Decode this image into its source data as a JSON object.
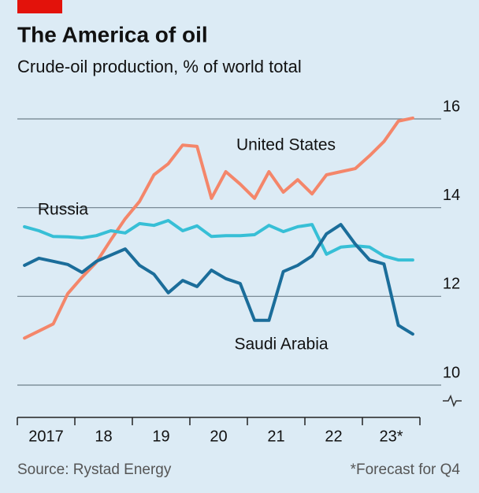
{
  "chart_data": {
    "type": "line",
    "title": "The America of oil",
    "subtitle": "Crude-oil production, % of world total",
    "source": "Source: Rystad Energy",
    "note": "*Forecast for Q4",
    "x": [
      2017.125,
      2017.375,
      2017.625,
      2017.875,
      2018.125,
      2018.375,
      2018.625,
      2018.875,
      2019.125,
      2019.375,
      2019.625,
      2019.875,
      2020.125,
      2020.375,
      2020.625,
      2020.875,
      2021.125,
      2021.375,
      2021.625,
      2021.875,
      2022.125,
      2022.375,
      2022.625,
      2022.875,
      2023.125,
      2023.375,
      2023.625,
      2023.875
    ],
    "xlim": [
      2017,
      2024
    ],
    "xticks": [
      2017,
      2018,
      2019,
      2020,
      2021,
      2022,
      2023,
      2024
    ],
    "xtick_labels": [
      {
        "value": 2017.5,
        "label": "2017"
      },
      {
        "value": 2018.5,
        "label": "18"
      },
      {
        "value": 2019.5,
        "label": "19"
      },
      {
        "value": 2020.5,
        "label": "20"
      },
      {
        "value": 2021.5,
        "label": "21"
      },
      {
        "value": 2022.5,
        "label": "22"
      },
      {
        "value": 2023.5,
        "label": "23*"
      }
    ],
    "ylim": [
      10,
      16
    ],
    "yticks": [
      10,
      12,
      14,
      16
    ],
    "grid": true,
    "series": [
      {
        "name": "United States",
        "color": "#f4866a",
        "values": [
          11.06,
          11.22,
          11.38,
          12.06,
          12.43,
          12.77,
          13.27,
          13.75,
          14.14,
          14.74,
          14.99,
          15.41,
          15.38,
          14.21,
          14.81,
          14.53,
          14.21,
          14.81,
          14.35,
          14.63,
          14.31,
          14.74,
          14.81,
          14.88,
          15.17,
          15.49,
          15.95,
          16.02
        ]
      },
      {
        "name": "Russia",
        "color": "#37bfd6",
        "values": [
          13.57,
          13.48,
          13.35,
          13.34,
          13.32,
          13.37,
          13.48,
          13.43,
          13.64,
          13.6,
          13.71,
          13.48,
          13.59,
          13.35,
          13.37,
          13.37,
          13.39,
          13.6,
          13.46,
          13.57,
          13.62,
          12.95,
          13.11,
          13.14,
          13.11,
          12.91,
          12.82,
          12.82
        ]
      },
      {
        "name": "Saudi Arabia",
        "color": "#1b6d9a",
        "values": [
          12.7,
          12.86,
          12.79,
          12.72,
          12.54,
          12.79,
          12.93,
          13.07,
          12.7,
          12.5,
          12.08,
          12.36,
          12.22,
          12.59,
          12.4,
          12.29,
          11.46,
          11.46,
          12.56,
          12.7,
          12.91,
          13.41,
          13.62,
          13.18,
          12.82,
          12.73,
          11.35,
          11.15
        ]
      }
    ]
  }
}
